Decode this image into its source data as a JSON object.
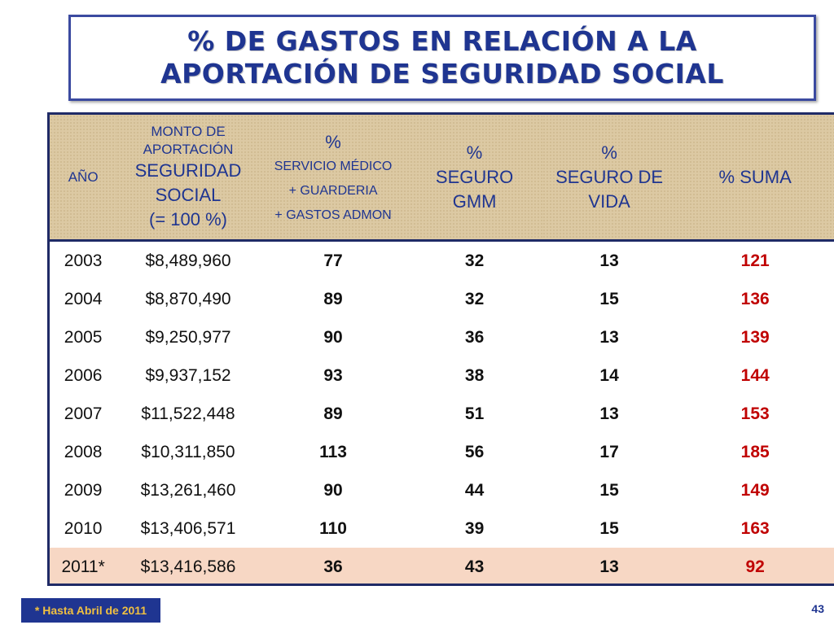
{
  "title": {
    "line1": "% DE GASTOS EN RELACIÓN A LA",
    "line2": "APORTACIÓN DE SEGURIDAD SOCIAL"
  },
  "headers": {
    "ano": "AÑO",
    "monto_l1": "MONTO DE",
    "monto_l2": "APORTACIÓN",
    "monto_l3": "SEGURIDAD",
    "monto_l4": "SOCIAL",
    "monto_l5": "(=  100 %)",
    "serv_l1": "%",
    "serv_l2": "SERVICIO MÉDICO",
    "serv_l3": "+  GUARDERIA",
    "serv_l4": "+  GASTOS  ADMON",
    "gmm_l1": "%",
    "gmm_l2": "SEGURO",
    "gmm_l3": "GMM",
    "vida_l1": "%",
    "vida_l2": "SEGURO DE",
    "vida_l3": "VIDA",
    "suma": "% SUMA"
  },
  "rows": [
    {
      "ano": "2003",
      "monto": "$8,489,960",
      "serv": "77",
      "gmm": "32",
      "vida": "13",
      "suma": "121"
    },
    {
      "ano": "2004",
      "monto": "$8,870,490",
      "serv": "89",
      "gmm": "32",
      "vida": "15",
      "suma": "136"
    },
    {
      "ano": "2005",
      "monto": "$9,250,977",
      "serv": "90",
      "gmm": "36",
      "vida": "13",
      "suma": "139"
    },
    {
      "ano": "2006",
      "monto": "$9,937,152",
      "serv": "93",
      "gmm": "38",
      "vida": "14",
      "suma": "144"
    },
    {
      "ano": "2007",
      "monto": "$11,522,448",
      "serv": "89",
      "gmm": "51",
      "vida": "13",
      "suma": "153"
    },
    {
      "ano": "2008",
      "monto": "$10,311,850",
      "serv": "113",
      "gmm": "56",
      "vida": "17",
      "suma": "185"
    },
    {
      "ano": "2009",
      "monto": "$13,261,460",
      "serv": "90",
      "gmm": "44",
      "vida": "15",
      "suma": "149"
    },
    {
      "ano": "2010",
      "monto": "$13,406,571",
      "serv": "110",
      "gmm": "39",
      "vida": "15",
      "suma": "163"
    },
    {
      "ano": "2011*",
      "monto": "$13,416,586",
      "serv": "36",
      "gmm": "43",
      "vida": "13",
      "suma": "92"
    }
  ],
  "footnote": "* Hasta Abril de 2011",
  "page_number": "43",
  "colors": {
    "title": "#1f3591",
    "header_bg": "#dcc9a3",
    "suma_text": "#c00000",
    "highlight_row": "#f7d7c4",
    "footnote_bg": "#1f3591",
    "footnote_text": "#f0c040"
  }
}
